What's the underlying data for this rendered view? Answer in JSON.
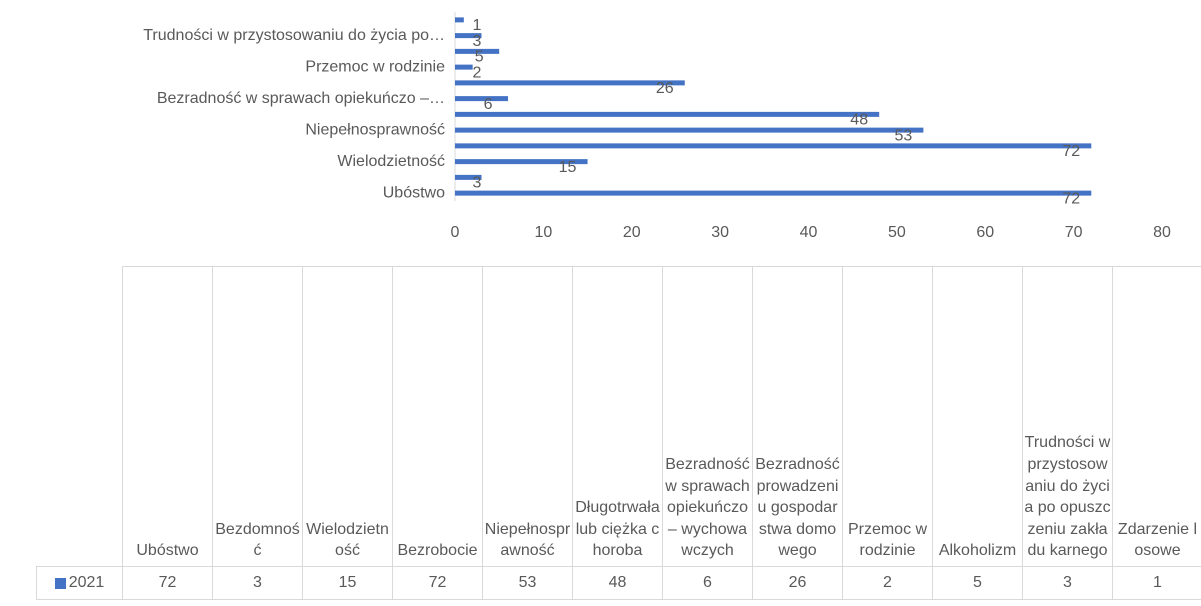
{
  "chart_data": {
    "type": "bar",
    "orientation": "horizontal",
    "categories": [
      "Ubóstwo",
      "Bezdomność",
      "Wielodzietność",
      "Bezrobocie",
      "Niepełnosprawność",
      "Długotrwała lub ciężka choroba",
      "Bezradność w sprawach opiekuńczo – wychowawczych",
      "Bezradność prowadzeniu gospodarstwa domowego",
      "Przemoc w rodzinie",
      "Alkoholizm",
      "Trudności w przystosowaniu do życia po opuszczeniu zakładu karnego",
      "Zdarzenie losowe"
    ],
    "axis_labels": [
      "Ubóstwo",
      null,
      "Wielodzietność",
      null,
      "Niepełnosprawność",
      null,
      "Bezradność w sprawach opiekuńczo –…",
      null,
      "Przemoc w rodzinie",
      null,
      "Trudności w przystosowaniu do życia po…",
      null
    ],
    "series": [
      {
        "name": "2021",
        "color": "#4472c4",
        "values": [
          72,
          3,
          15,
          72,
          53,
          48,
          6,
          26,
          2,
          5,
          3,
          1
        ]
      }
    ],
    "xlim": [
      0,
      80
    ],
    "xticks": [
      0,
      10,
      20,
      30,
      40,
      50,
      60,
      70,
      80
    ]
  }
}
